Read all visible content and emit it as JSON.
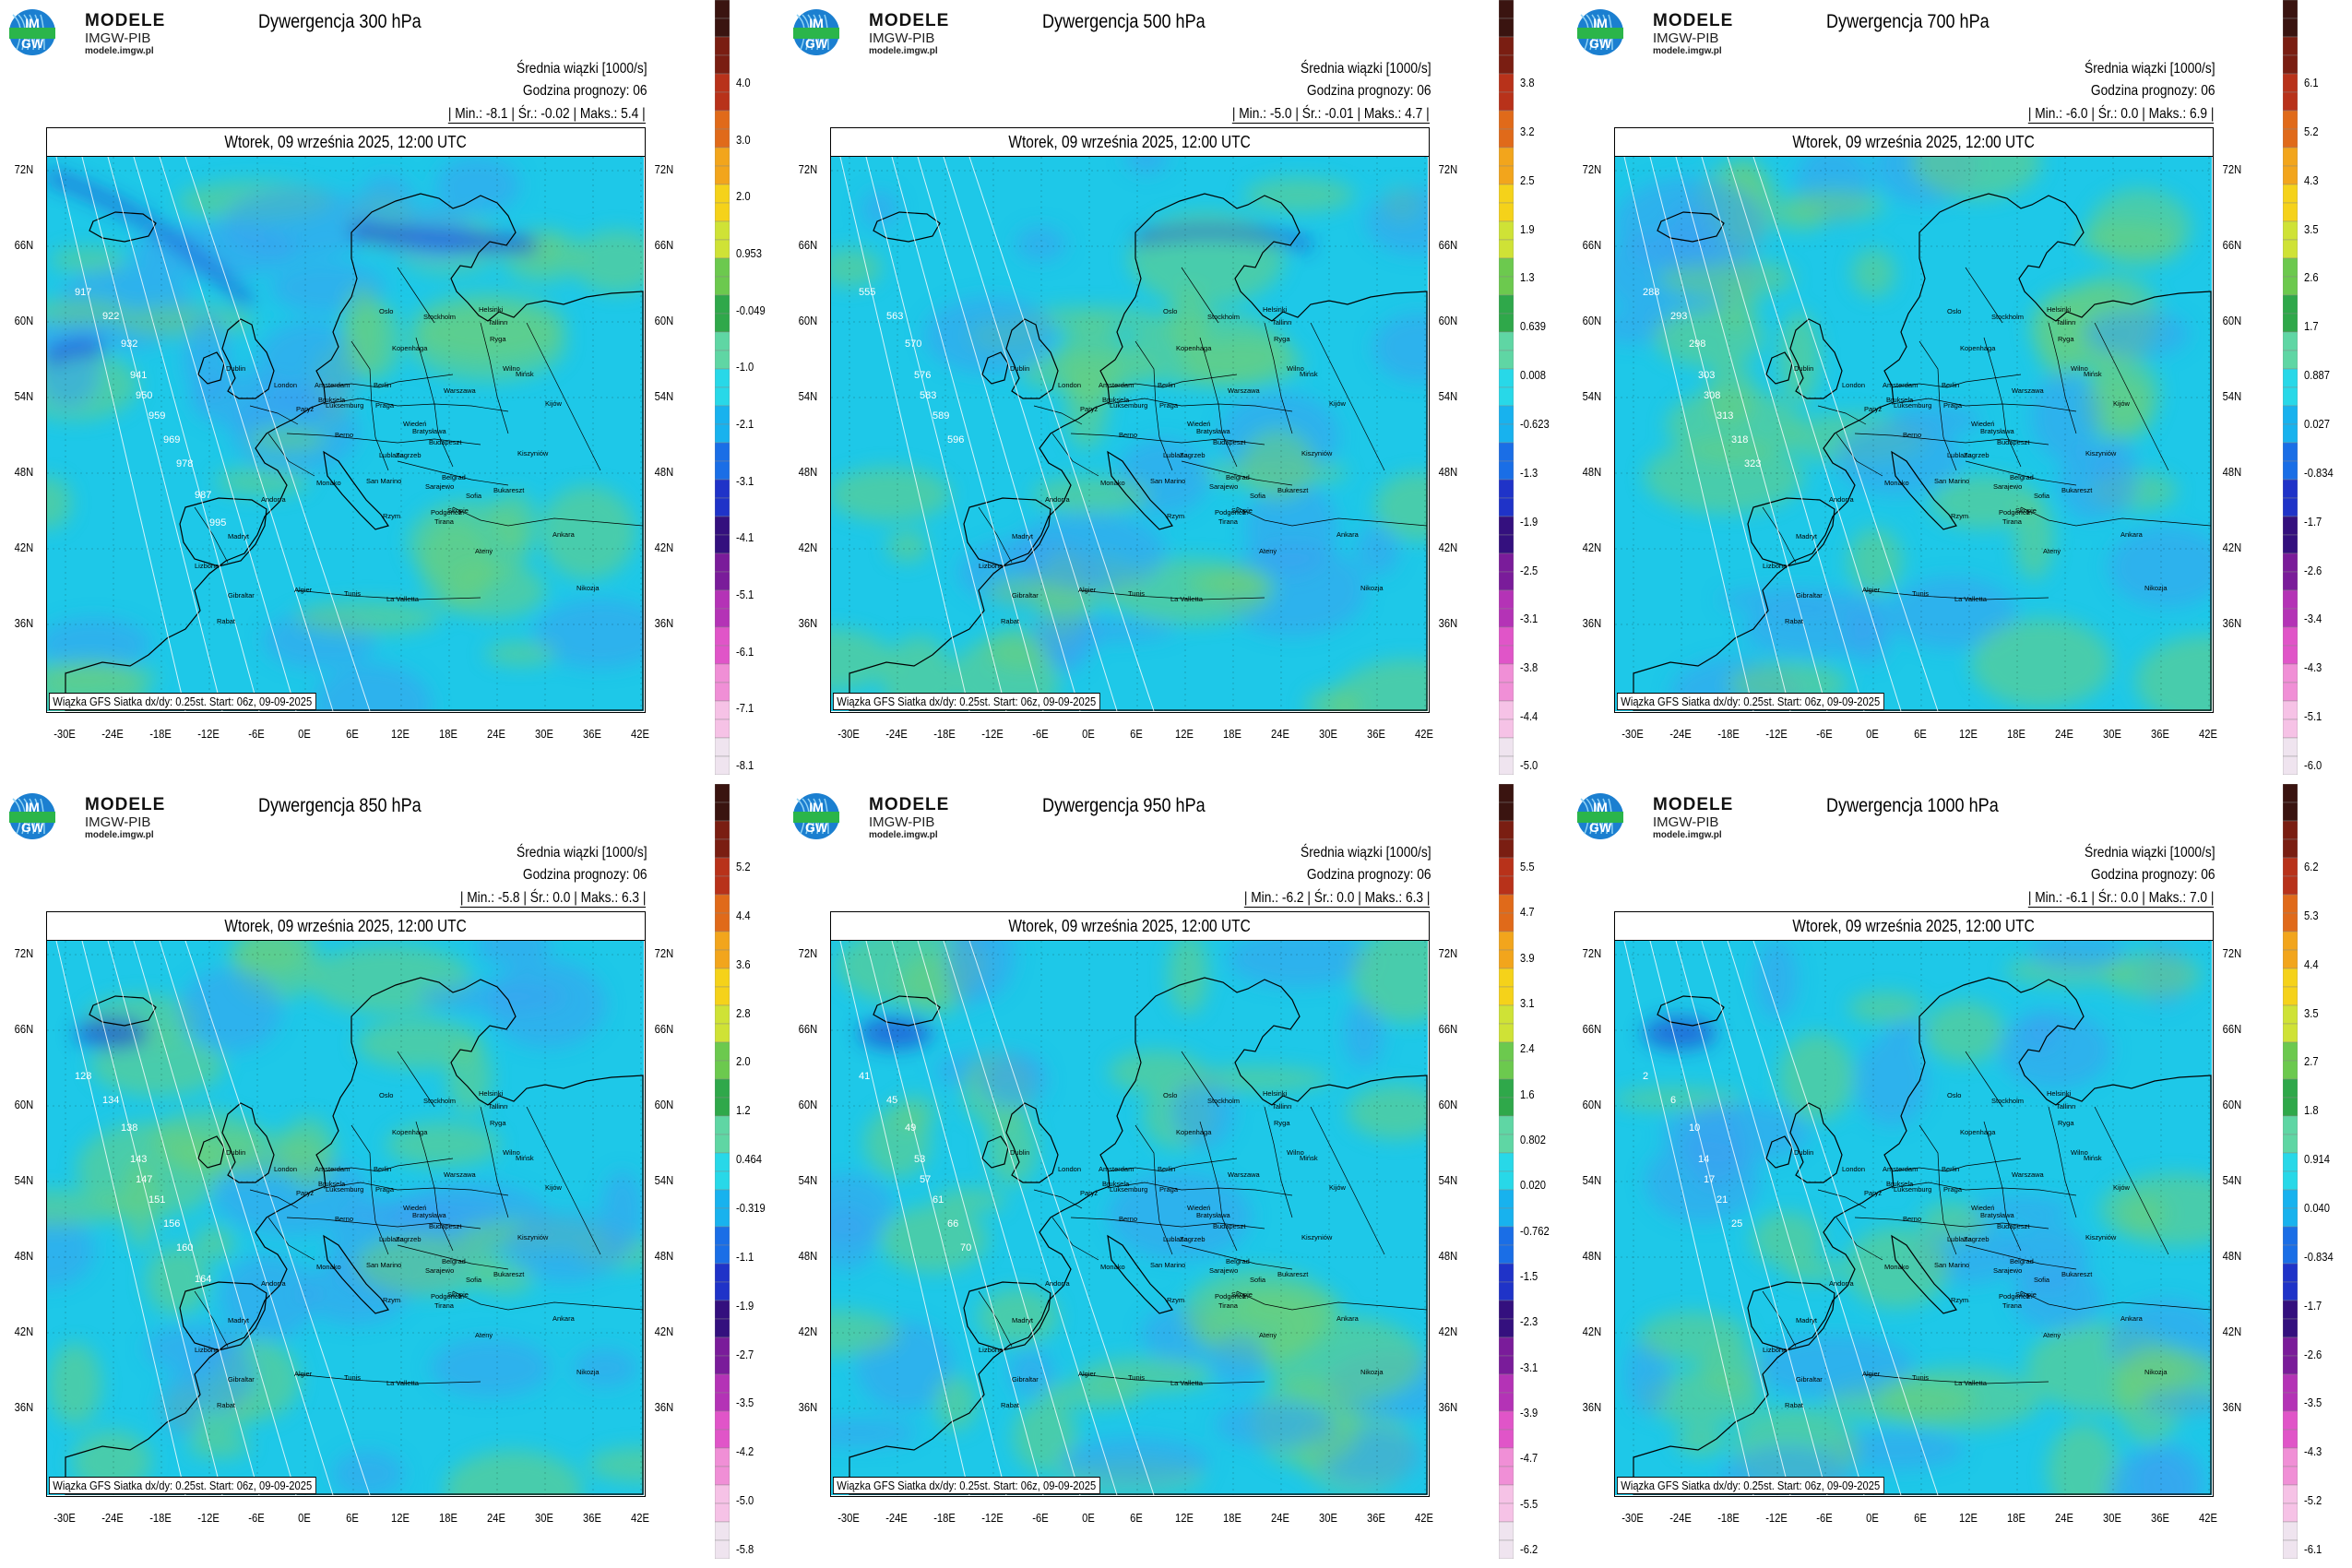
{
  "logo": {
    "line1": "MODELE",
    "line2": "IMGW-PIB",
    "line3": "modele.imgw.pl",
    "badge_top": "IM",
    "badge_bottom": "GW"
  },
  "common": {
    "mean_label": "Średnia wiązki [1000/s]",
    "forecast_hour": "Godzina prognozy: 06",
    "date": "Wtorek, 09 września 2025, 12:00 UTC",
    "credit": "Wiązka GFS Siatka dx/dy: 0.25st. Start: 06z, 09-09-2025",
    "min_label": "Min.:",
    "mean_short": "Śr.:",
    "max_label": "Maks.:",
    "lat_labels": [
      "72N",
      "66N",
      "60N",
      "54N",
      "48N",
      "42N",
      "36N"
    ],
    "lon_labels": [
      "-30E",
      "-24E",
      "-18E",
      "-12E",
      "-6E",
      "0E",
      "6E",
      "12E",
      "18E",
      "24E",
      "30E",
      "36E",
      "42E"
    ],
    "cities": [
      "Oslo",
      "Stockholm",
      "Helsinki",
      "Tallinn",
      "Ryga",
      "Wilno",
      "Mińsk",
      "Kopenhaga",
      "Dublin",
      "London",
      "Amsterdam",
      "Bruksela",
      "Luksemburg",
      "Paryż",
      "Berlin",
      "Praga",
      "Warszawa",
      "Kijów",
      "Berno",
      "Wiedeń",
      "Bratysława",
      "Budapeszt",
      "Lublana",
      "Zagrzeb",
      "Belgrad",
      "Sarajewo",
      "Kiszyniów",
      "Bukareszt",
      "Sofia",
      "Skopje",
      "Tirana",
      "Podgorica",
      "Andorra",
      "Monako",
      "San Marino",
      "Rzym",
      "Madryt",
      "Lizbona",
      "Gibraltar",
      "Rabat",
      "Algier",
      "Tunis",
      "La Valletta",
      "Ateny",
      "Ankara",
      "Nikozja"
    ],
    "colors": {
      "ocean_bg": "#1ec8e8",
      "land_bg": "#33b9ea",
      "convergence": "#3aa0f0",
      "divergence": "#6ccf7a",
      "strong_conv": "#1a3ed0",
      "border": "#000000"
    }
  },
  "panels": [
    {
      "title": "Dywergencja 300 hPa",
      "min": "-8.1",
      "mean": "-0.02",
      "max": "5.4",
      "colorbar": [
        "4.0",
        "3.0",
        "2.0",
        "0.953",
        "-0.049",
        "-1.0",
        "-2.1",
        "-3.1",
        "-4.1",
        "-5.1",
        "-6.1",
        "-7.1",
        "-8.1"
      ],
      "isolines": [
        "917",
        "922",
        "932",
        "941",
        "950",
        "959",
        "969",
        "978",
        "987",
        "995"
      ]
    },
    {
      "title": "Dywergencja 500 hPa",
      "min": "-5.0",
      "mean": "-0.01",
      "max": "4.7",
      "colorbar": [
        "3.8",
        "3.2",
        "2.5",
        "1.9",
        "1.3",
        "0.639",
        "0.008",
        "-0.623",
        "-1.3",
        "-1.9",
        "-2.5",
        "-3.1",
        "-3.8",
        "-4.4",
        "-5.0"
      ],
      "isolines": [
        "555",
        "563",
        "570",
        "576",
        "583",
        "589",
        "596"
      ]
    },
    {
      "title": "Dywergencja 700 hPa",
      "min": "-6.0",
      "mean": "0.0",
      "max": "6.9",
      "colorbar": [
        "6.1",
        "5.2",
        "4.3",
        "3.5",
        "2.6",
        "1.7",
        "0.887",
        "0.027",
        "-0.834",
        "-1.7",
        "-2.6",
        "-3.4",
        "-4.3",
        "-5.1",
        "-6.0"
      ],
      "isolines": [
        "288",
        "293",
        "298",
        "303",
        "308",
        "313",
        "318",
        "323"
      ]
    },
    {
      "title": "Dywergencja 850 hPa",
      "min": "-5.8",
      "mean": "0.0",
      "max": "6.3",
      "colorbar": [
        "5.2",
        "4.4",
        "3.6",
        "2.8",
        "2.0",
        "1.2",
        "0.464",
        "-0.319",
        "-1.1",
        "-1.9",
        "-2.7",
        "-3.5",
        "-4.2",
        "-5.0",
        "-5.8"
      ],
      "isolines": [
        "128",
        "134",
        "138",
        "143",
        "147",
        "151",
        "156",
        "160",
        "164"
      ]
    },
    {
      "title": "Dywergencja 950 hPa",
      "min": "-6.2",
      "mean": "0.0",
      "max": "6.3",
      "colorbar": [
        "5.5",
        "4.7",
        "3.9",
        "3.1",
        "2.4",
        "1.6",
        "0.802",
        "0.020",
        "-0.762",
        "-1.5",
        "-2.3",
        "-3.1",
        "-3.9",
        "-4.7",
        "-5.5",
        "-6.2"
      ],
      "isolines": [
        "41",
        "45",
        "49",
        "53",
        "57",
        "61",
        "66",
        "70"
      ]
    },
    {
      "title": "Dywergencja 1000 hPa",
      "min": "-6.1",
      "mean": "0.0",
      "max": "7.0",
      "colorbar": [
        "6.2",
        "5.3",
        "4.4",
        "3.5",
        "2.7",
        "1.8",
        "0.914",
        "0.040",
        "-0.834",
        "-1.7",
        "-2.6",
        "-3.5",
        "-4.3",
        "-5.2",
        "-6.1"
      ],
      "isolines": [
        "2",
        "6",
        "10",
        "14",
        "17",
        "21",
        "25"
      ]
    }
  ]
}
